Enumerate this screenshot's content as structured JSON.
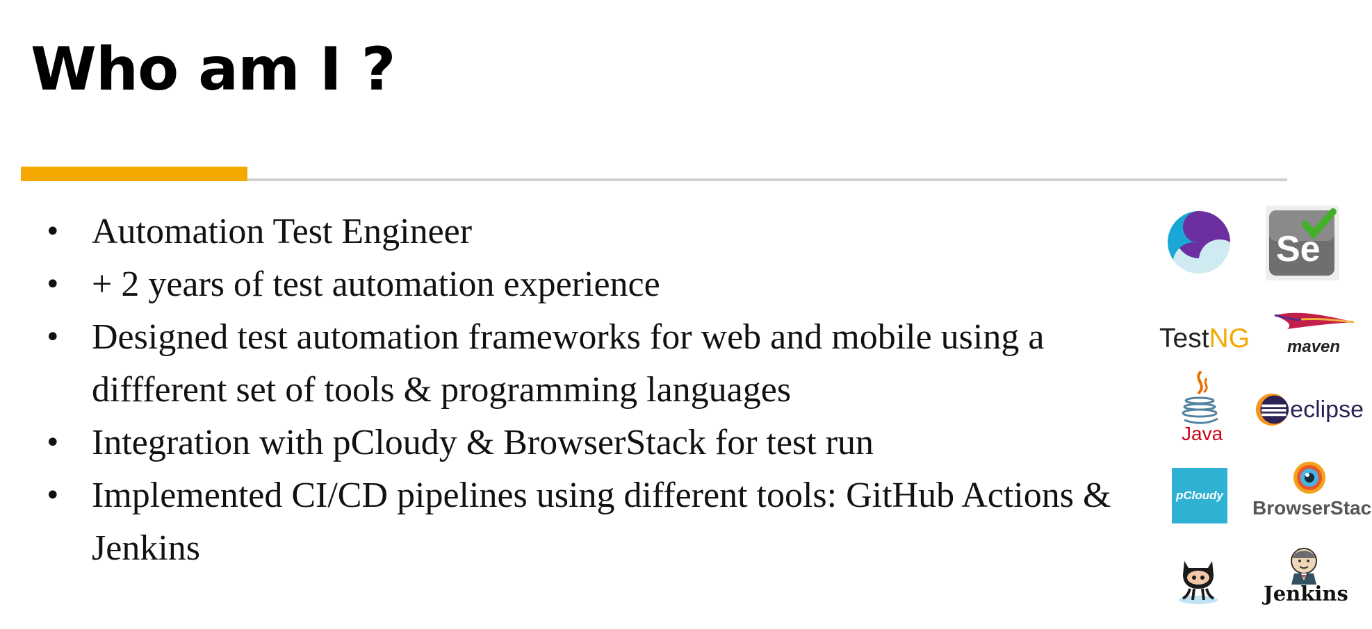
{
  "slide": {
    "title": "Who am I ?"
  },
  "colors": {
    "accent": "#F5A800",
    "rule": "#CFCFCF"
  },
  "bullets": [
    "Automation Test Engineer",
    "+ 2 years of test automation experience",
    "Designed test automation frameworks for web and mobile using a diffferent set of tools & programming languages",
    "Integration with pCloudy & BrowserStack for test run",
    "Implemented  CI/CD pipelines using different tools: GitHub Actions & Jenkins"
  ],
  "logos": {
    "appium": {
      "icon": "appium-logo-icon"
    },
    "selenium": {
      "text": "Se",
      "icon": "selenium-logo-icon"
    },
    "testng": {
      "text_a": "Test",
      "text_b": "NG"
    },
    "maven": {
      "text": "maven",
      "icon": "maven-feather-icon"
    },
    "java": {
      "text": "Java",
      "icon": "java-cup-icon"
    },
    "eclipse": {
      "text": "eclipse",
      "icon": "eclipse-logo-icon"
    },
    "pcloudy": {
      "text": "pCloudy",
      "icon": "pcloudy-logo-icon"
    },
    "browserstack": {
      "text": "BrowserStack",
      "icon": "browserstack-eye-icon"
    },
    "github": {
      "icon": "github-octocat-icon"
    },
    "jenkins": {
      "text": "Jenkins",
      "icon": "jenkins-butler-icon"
    }
  }
}
